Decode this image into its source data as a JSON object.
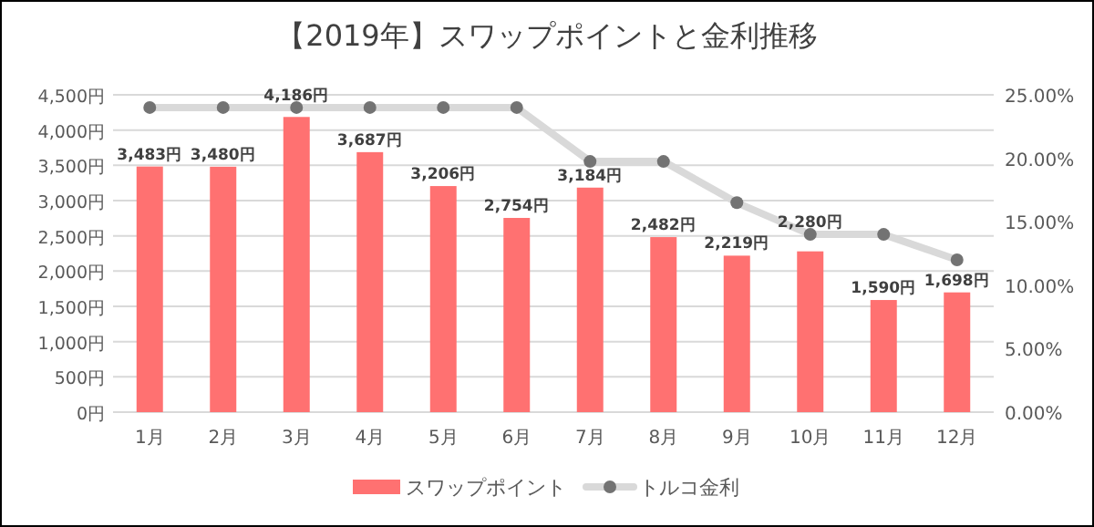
{
  "chart_data": {
    "type": "bar",
    "title": "【2019年】スワップポイントと金利推移",
    "categories": [
      "1月",
      "2月",
      "3月",
      "4月",
      "5月",
      "6月",
      "7月",
      "8月",
      "9月",
      "10月",
      "11月",
      "12月"
    ],
    "series": [
      {
        "name": "スワップポイント",
        "color": "#ff7171",
        "values": [
          3483,
          3480,
          4186,
          3687,
          3206,
          2754,
          3184,
          2482,
          2219,
          2280,
          1590,
          1698
        ],
        "value_labels": [
          "3,483円",
          "3,480円",
          "4,186円",
          "3,687円",
          "3,206円",
          "2,754円",
          "3,184円",
          "2,482円",
          "2,219円",
          "2,280円",
          "1,590円",
          "1,698円"
        ]
      },
      {
        "name": "トルコ金利",
        "type": "line",
        "axis": "y2",
        "color": "#d9d9d9",
        "marker": "circle",
        "values": [
          24,
          24,
          24,
          24,
          24,
          24,
          19.75,
          19.75,
          16.5,
          14,
          14,
          12
        ]
      }
    ],
    "ylim": [
      0,
      4500
    ],
    "yticks": [
      {
        "value": 0,
        "label": "0円"
      },
      {
        "value": 500,
        "label": "500円"
      },
      {
        "value": 1000,
        "label": "1,000円"
      },
      {
        "value": 1500,
        "label": "1,500円"
      },
      {
        "value": 2000,
        "label": "2,000円"
      },
      {
        "value": 2500,
        "label": "2,500円"
      },
      {
        "value": 3000,
        "label": "3,000円"
      },
      {
        "value": 3500,
        "label": "3,500円"
      },
      {
        "value": 4000,
        "label": "4,000円"
      },
      {
        "value": 4500,
        "label": "4,500円"
      }
    ],
    "y2lim": [
      0,
      25
    ],
    "y2ticks": [
      {
        "value": 0,
        "label": "0.00%"
      },
      {
        "value": 5,
        "label": "5.00%"
      },
      {
        "value": 10,
        "label": "10.00%"
      },
      {
        "value": 15,
        "label": "15.00%"
      },
      {
        "value": 20,
        "label": "20.00%"
      },
      {
        "value": 25,
        "label": "25.00%"
      }
    ],
    "grid": "y",
    "legend": "bottom"
  }
}
